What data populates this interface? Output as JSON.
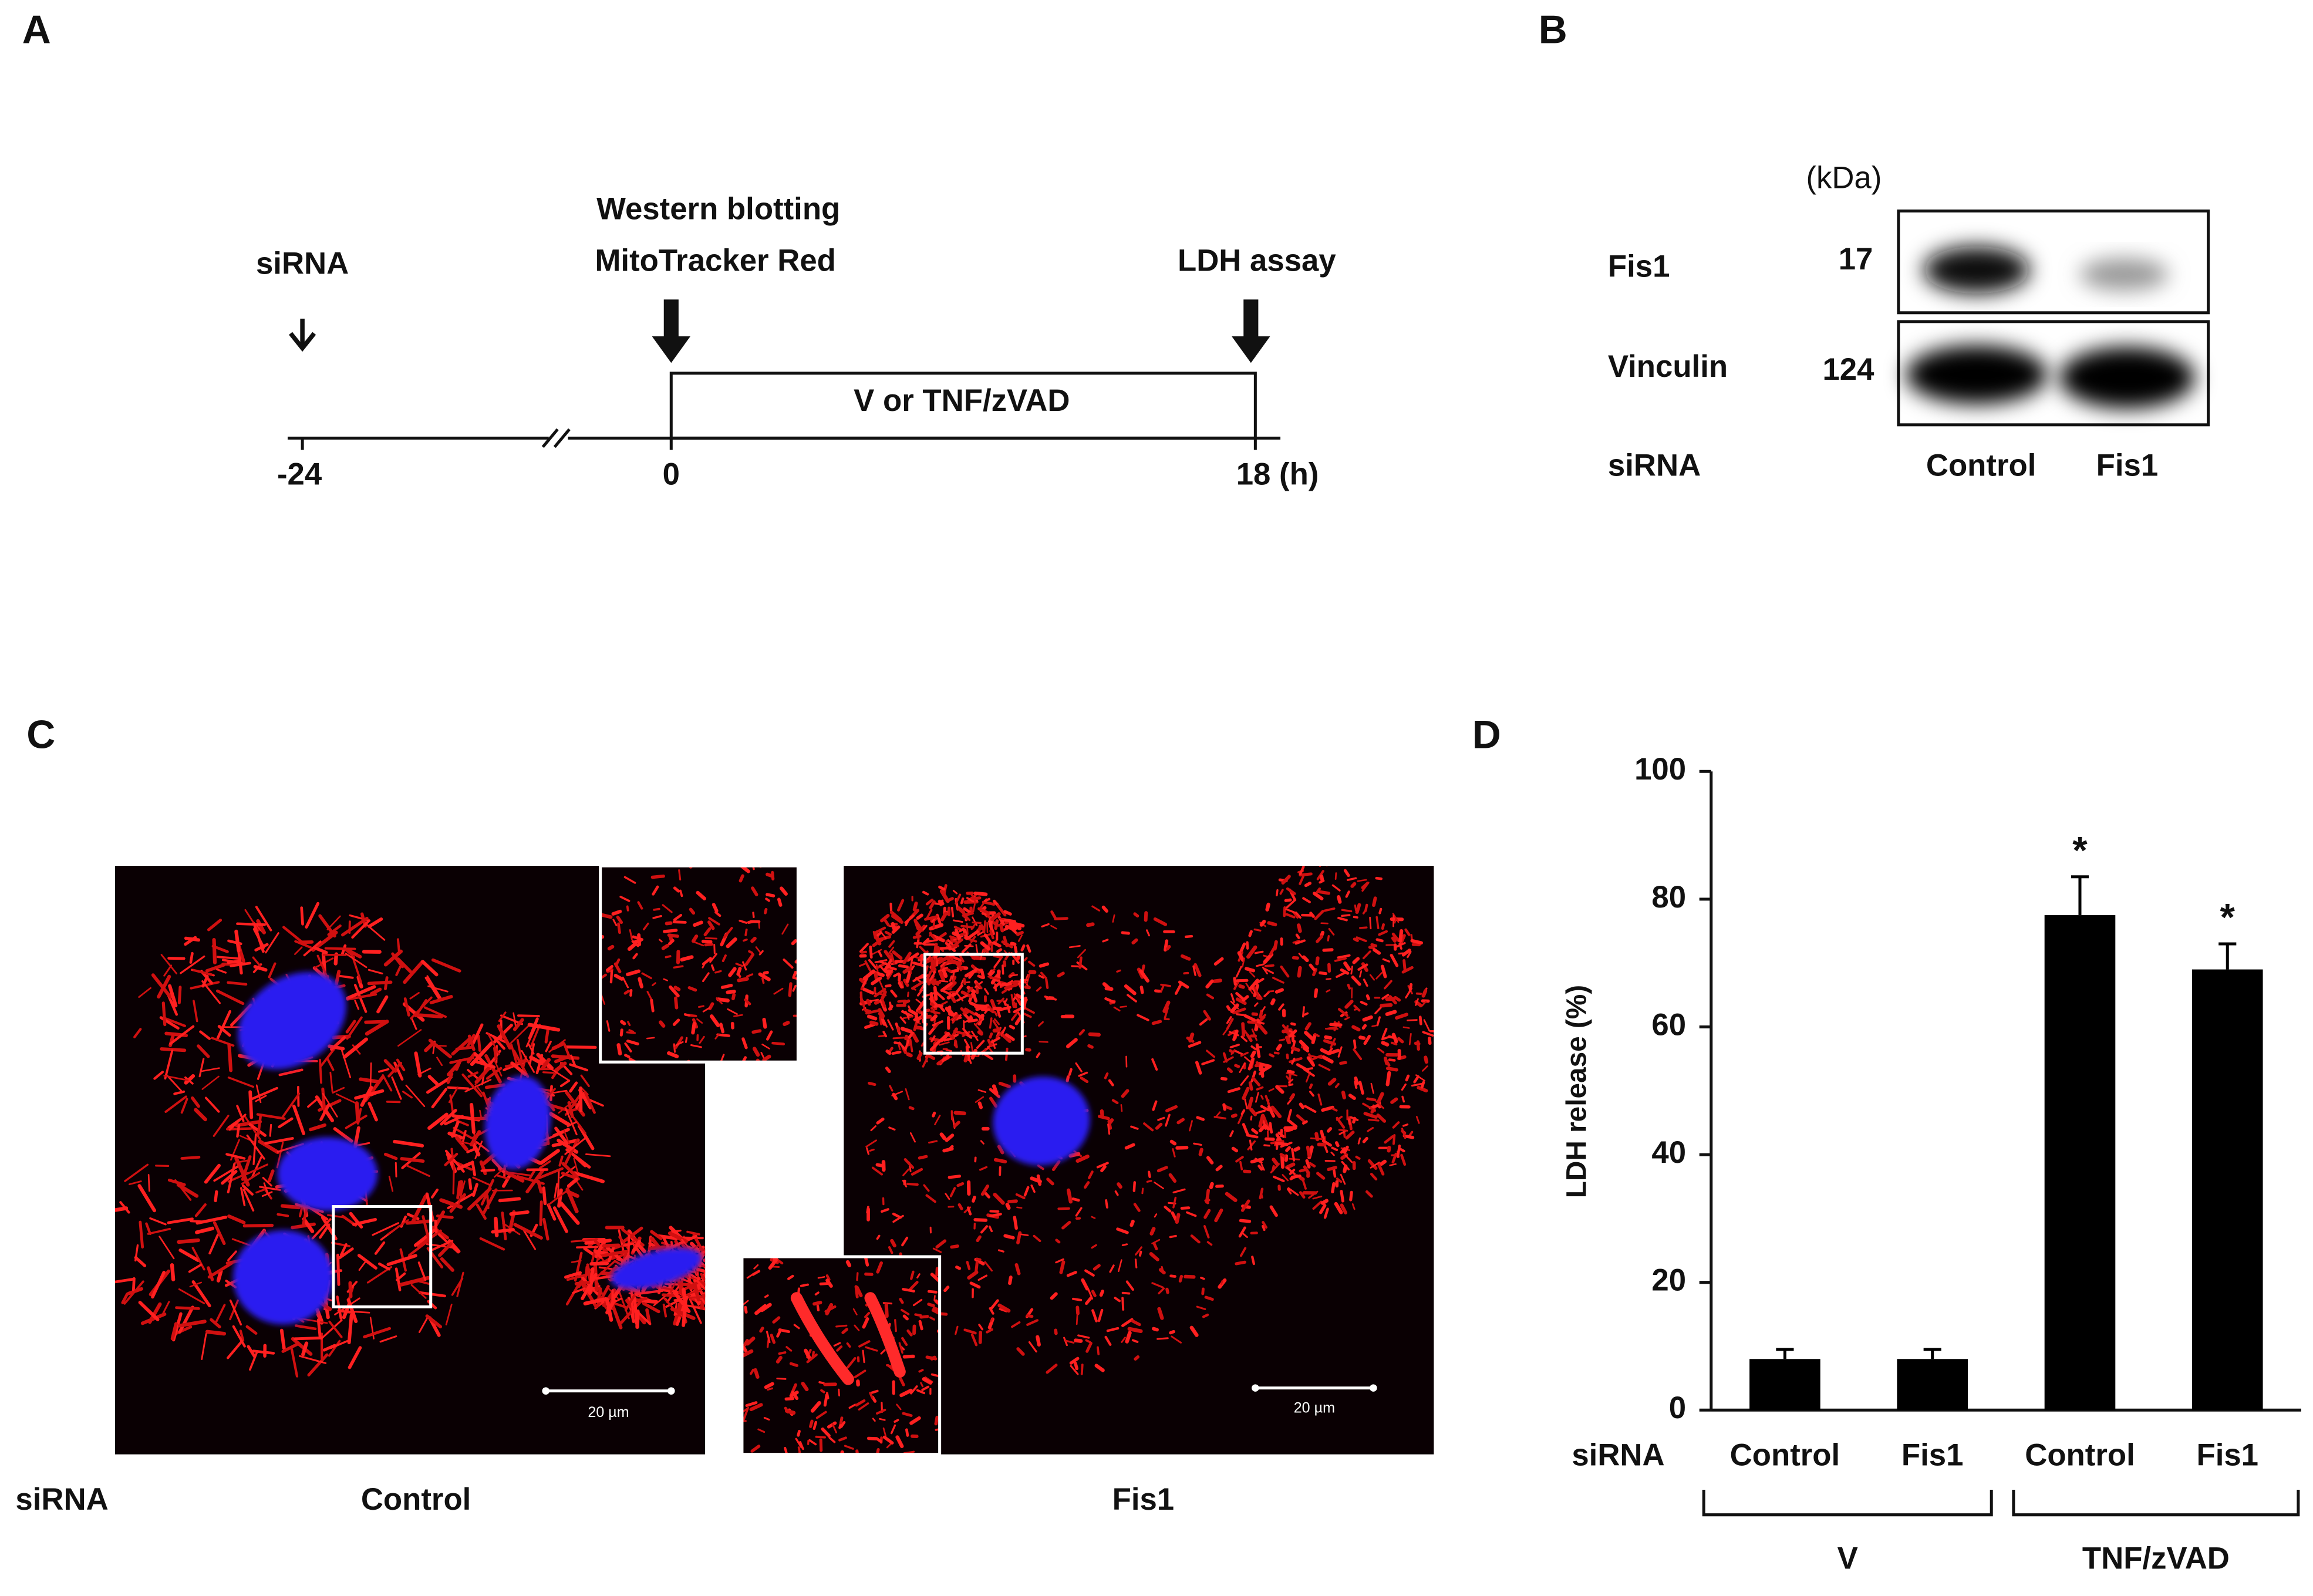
{
  "panel_a": {
    "letter": "A",
    "sirna": "siRNA",
    "western": "Western blotting",
    "mito": "MitoTracker Red",
    "ldh": "LDH assay",
    "treatment": "V or TNF/zVAD",
    "time_labels": [
      "-24",
      "0",
      "18 (h)"
    ]
  },
  "panel_b": {
    "letter": "B",
    "unit": "(kDa)",
    "rows": [
      {
        "protein": "Fis1",
        "kda": 17
      },
      {
        "protein": "Vinculin",
        "kda": 124
      }
    ],
    "sirna": "siRNA",
    "lanes": [
      "Control",
      "Fis1"
    ]
  },
  "panel_c": {
    "letter": "C",
    "sirna": "siRNA",
    "images": [
      {
        "label": "Control",
        "scale_bar": "20 µm"
      },
      {
        "label": "Fis1",
        "scale_bar": "20 µm"
      }
    ]
  },
  "chart_data": {
    "type": "bar",
    "letter": "D",
    "y_label": "LDH release (%)",
    "sirna_label": "siRNA",
    "categories": [
      "Control",
      "Fis1",
      "Control",
      "Fis1"
    ],
    "values": [
      8,
      8,
      77.5,
      69
    ],
    "errors": [
      1.5,
      1.5,
      6,
      4
    ],
    "significance": [
      null,
      null,
      "*",
      "*"
    ],
    "groups": [
      "V",
      "TNF/zVAD"
    ],
    "color": "#000000",
    "ylim": [
      0,
      100
    ],
    "yticks": [
      0,
      20,
      40,
      60,
      80,
      100
    ],
    "grid": false
  }
}
